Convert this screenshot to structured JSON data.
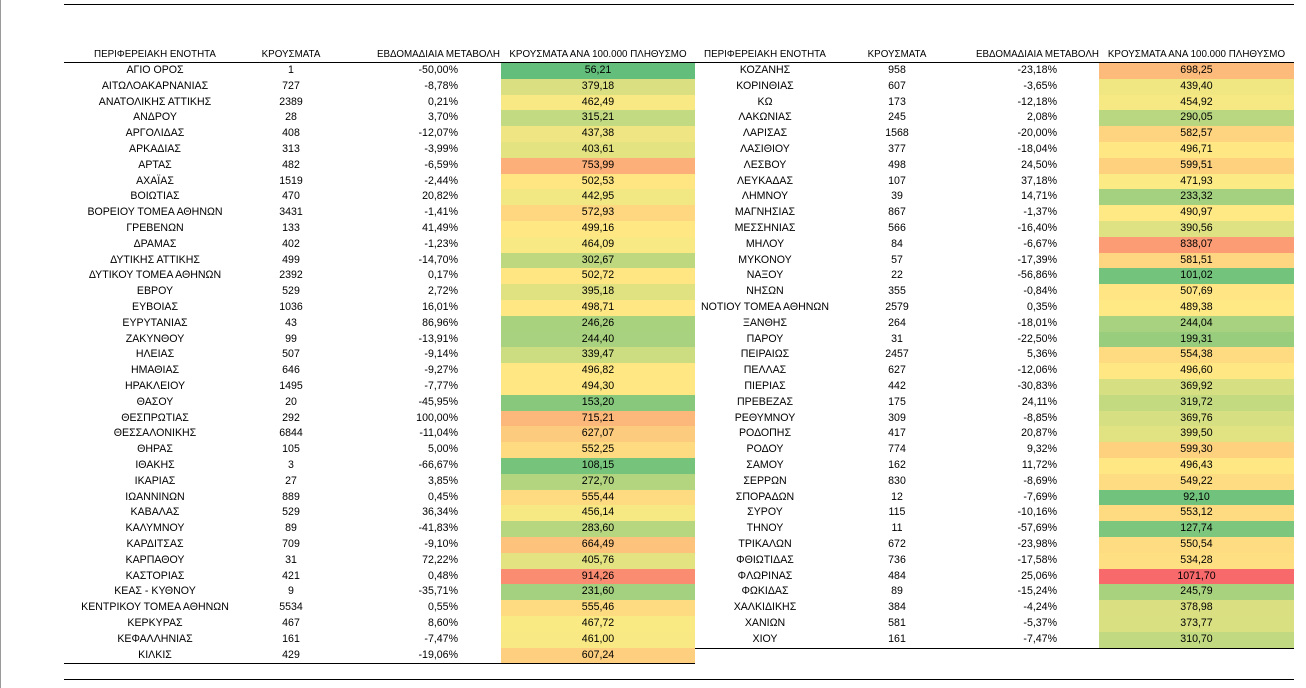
{
  "headers": {
    "region": "ΠΕΡΙΦΕΡΕΙΑΚΗ ΕΝΟΤΗΤΑ",
    "cases": "ΚΡΟΥΣΜΑΤΑ",
    "weekly_change": "ΕΒΔΟΜΑΔΙΑΙΑ ΜΕΤΑΒΟΛΗ",
    "per100k": "ΚΡΟΥΣΜΑΤΑ ΑΝΑ 100.000 ΠΛΗΘΥΣΜΟ"
  },
  "colors": {
    "scale_low": "#63be7b",
    "scale_mid": "#ffeb84",
    "scale_high": "#f8696b"
  },
  "color_scale": {
    "min": 56.21,
    "mid": 480,
    "max": 1071.7
  },
  "left_rows": [
    {
      "region": "ΑΓΙΟ ΟΡΟΣ",
      "cases": "1",
      "change": "-50,00%",
      "per100k": "56,21",
      "value": 56.21
    },
    {
      "region": "ΑΙΤΩΛΟΑΚΑΡΝΑΝΙΑΣ",
      "cases": "727",
      "change": "-8,78%",
      "per100k": "379,18",
      "value": 379.18
    },
    {
      "region": "ΑΝΑΤΟΛΙΚΗΣ ΑΤΤΙΚΗΣ",
      "cases": "2389",
      "change": "0,21%",
      "per100k": "462,49",
      "value": 462.49
    },
    {
      "region": "ΑΝΔΡΟΥ",
      "cases": "28",
      "change": "3,70%",
      "per100k": "315,21",
      "value": 315.21
    },
    {
      "region": "ΑΡΓΟΛΙΔΑΣ",
      "cases": "408",
      "change": "-12,07%",
      "per100k": "437,38",
      "value": 437.38
    },
    {
      "region": "ΑΡΚΑΔΙΑΣ",
      "cases": "313",
      "change": "-3,99%",
      "per100k": "403,61",
      "value": 403.61
    },
    {
      "region": "ΑΡΤΑΣ",
      "cases": "482",
      "change": "-6,59%",
      "per100k": "753,99",
      "value": 753.99
    },
    {
      "region": "ΑΧΑΪΑΣ",
      "cases": "1519",
      "change": "-2,44%",
      "per100k": "502,53",
      "value": 502.53
    },
    {
      "region": "ΒΟΙΩΤΙΑΣ",
      "cases": "470",
      "change": "20,82%",
      "per100k": "442,95",
      "value": 442.95
    },
    {
      "region": "ΒΟΡΕΙΟΥ ΤΟΜΕΑ ΑΘΗΝΩΝ",
      "cases": "3431",
      "change": "-1,41%",
      "per100k": "572,93",
      "value": 572.93
    },
    {
      "region": "ΓΡΕΒΕΝΩΝ",
      "cases": "133",
      "change": "41,49%",
      "per100k": "499,16",
      "value": 499.16
    },
    {
      "region": "ΔΡΑΜΑΣ",
      "cases": "402",
      "change": "-1,23%",
      "per100k": "464,09",
      "value": 464.09
    },
    {
      "region": "ΔΥΤΙΚΗΣ ΑΤΤΙΚΗΣ",
      "cases": "499",
      "change": "-14,70%",
      "per100k": "302,67",
      "value": 302.67
    },
    {
      "region": "ΔΥΤΙΚΟΥ ΤΟΜΕΑ ΑΘΗΝΩΝ",
      "cases": "2392",
      "change": "0,17%",
      "per100k": "502,72",
      "value": 502.72
    },
    {
      "region": "ΕΒΡΟΥ",
      "cases": "529",
      "change": "2,72%",
      "per100k": "395,18",
      "value": 395.18
    },
    {
      "region": "ΕΥΒΟΙΑΣ",
      "cases": "1036",
      "change": "16,01%",
      "per100k": "498,71",
      "value": 498.71
    },
    {
      "region": "ΕΥΡΥΤΑΝΙΑΣ",
      "cases": "43",
      "change": "86,96%",
      "per100k": "246,26",
      "value": 246.26
    },
    {
      "region": "ΖΑΚΥΝΘΟΥ",
      "cases": "99",
      "change": "-13,91%",
      "per100k": "244,40",
      "value": 244.4
    },
    {
      "region": "ΗΛΕΙΑΣ",
      "cases": "507",
      "change": "-9,14%",
      "per100k": "339,47",
      "value": 339.47
    },
    {
      "region": "ΗΜΑΘΙΑΣ",
      "cases": "646",
      "change": "-9,27%",
      "per100k": "496,82",
      "value": 496.82
    },
    {
      "region": "ΗΡΑΚΛΕΙΟΥ",
      "cases": "1495",
      "change": "-7,77%",
      "per100k": "494,30",
      "value": 494.3
    },
    {
      "region": "ΘΑΣΟΥ",
      "cases": "20",
      "change": "-45,95%",
      "per100k": "153,20",
      "value": 153.2
    },
    {
      "region": "ΘΕΣΠΡΩΤΙΑΣ",
      "cases": "292",
      "change": "100,00%",
      "per100k": "715,21",
      "value": 715.21
    },
    {
      "region": "ΘΕΣΣΑΛΟΝΙΚΗΣ",
      "cases": "6844",
      "change": "-11,04%",
      "per100k": "627,07",
      "value": 627.07
    },
    {
      "region": "ΘΗΡΑΣ",
      "cases": "105",
      "change": "5,00%",
      "per100k": "552,25",
      "value": 552.25
    },
    {
      "region": "ΙΘΑΚΗΣ",
      "cases": "3",
      "change": "-66,67%",
      "per100k": "108,15",
      "value": 108.15
    },
    {
      "region": "ΙΚΑΡΙΑΣ",
      "cases": "27",
      "change": "3,85%",
      "per100k": "272,70",
      "value": 272.7
    },
    {
      "region": "ΙΩΑΝΝΙΝΩΝ",
      "cases": "889",
      "change": "0,45%",
      "per100k": "555,44",
      "value": 555.44
    },
    {
      "region": "ΚΑΒΑΛΑΣ",
      "cases": "529",
      "change": "36,34%",
      "per100k": "456,14",
      "value": 456.14
    },
    {
      "region": "ΚΑΛΥΜΝΟΥ",
      "cases": "89",
      "change": "-41,83%",
      "per100k": "283,60",
      "value": 283.6
    },
    {
      "region": "ΚΑΡΔΙΤΣΑΣ",
      "cases": "709",
      "change": "-9,10%",
      "per100k": "664,49",
      "value": 664.49
    },
    {
      "region": "ΚΑΡΠΑΘΟΥ",
      "cases": "31",
      "change": "72,22%",
      "per100k": "405,76",
      "value": 405.76
    },
    {
      "region": "ΚΑΣΤΟΡΙΑΣ",
      "cases": "421",
      "change": "0,48%",
      "per100k": "914,26",
      "value": 914.26
    },
    {
      "region": "ΚΕΑΣ - ΚΥΘΝΟΥ",
      "cases": "9",
      "change": "-35,71%",
      "per100k": "231,60",
      "value": 231.6
    },
    {
      "region": "ΚΕΝΤΡΙΚΟΥ ΤΟΜΕΑ ΑΘΗΝΩΝ",
      "cases": "5534",
      "change": "0,55%",
      "per100k": "555,46",
      "value": 555.46
    },
    {
      "region": "ΚΕΡΚΥΡΑΣ",
      "cases": "467",
      "change": "8,60%",
      "per100k": "467,72",
      "value": 467.72
    },
    {
      "region": "ΚΕΦΑΛΛΗΝΙΑΣ",
      "cases": "161",
      "change": "-7,47%",
      "per100k": "461,00",
      "value": 461.0
    },
    {
      "region": "ΚΙΛΚΙΣ",
      "cases": "429",
      "change": "-19,06%",
      "per100k": "607,24",
      "value": 607.24
    }
  ],
  "right_rows": [
    {
      "region": "ΚΟΖΑΝΗΣ",
      "cases": "958",
      "change": "-23,18%",
      "per100k": "698,25",
      "value": 698.25
    },
    {
      "region": "ΚΟΡΙΝΘΙΑΣ",
      "cases": "607",
      "change": "-3,65%",
      "per100k": "439,40",
      "value": 439.4
    },
    {
      "region": "ΚΩ",
      "cases": "173",
      "change": "-12,18%",
      "per100k": "454,92",
      "value": 454.92
    },
    {
      "region": "ΛΑΚΩΝΙΑΣ",
      "cases": "245",
      "change": "2,08%",
      "per100k": "290,05",
      "value": 290.05
    },
    {
      "region": "ΛΑΡΙΣΑΣ",
      "cases": "1568",
      "change": "-20,00%",
      "per100k": "582,57",
      "value": 582.57
    },
    {
      "region": "ΛΑΣΙΘΙΟΥ",
      "cases": "377",
      "change": "-18,04%",
      "per100k": "496,71",
      "value": 496.71
    },
    {
      "region": "ΛΕΣΒΟΥ",
      "cases": "498",
      "change": "24,50%",
      "per100k": "599,51",
      "value": 599.51
    },
    {
      "region": "ΛΕΥΚΑΔΑΣ",
      "cases": "107",
      "change": "37,18%",
      "per100k": "471,93",
      "value": 471.93
    },
    {
      "region": "ΛΗΜΝΟΥ",
      "cases": "39",
      "change": "14,71%",
      "per100k": "233,32",
      "value": 233.32
    },
    {
      "region": "ΜΑΓΝΗΣΙΑΣ",
      "cases": "867",
      "change": "-1,37%",
      "per100k": "490,97",
      "value": 490.97
    },
    {
      "region": "ΜΕΣΣΗΝΙΑΣ",
      "cases": "566",
      "change": "-16,40%",
      "per100k": "390,56",
      "value": 390.56
    },
    {
      "region": "ΜΗΛΟΥ",
      "cases": "84",
      "change": "-6,67%",
      "per100k": "838,07",
      "value": 838.07
    },
    {
      "region": "ΜΥΚΟΝΟΥ",
      "cases": "57",
      "change": "-17,39%",
      "per100k": "581,51",
      "value": 581.51
    },
    {
      "region": "ΝΑΞΟΥ",
      "cases": "22",
      "change": "-56,86%",
      "per100k": "101,02",
      "value": 101.02
    },
    {
      "region": "ΝΗΣΩΝ",
      "cases": "355",
      "change": "-0,84%",
      "per100k": "507,69",
      "value": 507.69
    },
    {
      "region": "ΝΟΤΙΟΥ ΤΟΜΕΑ ΑΘΗΝΩΝ",
      "cases": "2579",
      "change": "0,35%",
      "per100k": "489,38",
      "value": 489.38
    },
    {
      "region": "ΞΑΝΘΗΣ",
      "cases": "264",
      "change": "-18,01%",
      "per100k": "244,04",
      "value": 244.04
    },
    {
      "region": "ΠΑΡΟΥ",
      "cases": "31",
      "change": "-22,50%",
      "per100k": "199,31",
      "value": 199.31
    },
    {
      "region": "ΠΕΙΡΑΙΩΣ",
      "cases": "2457",
      "change": "5,36%",
      "per100k": "554,38",
      "value": 554.38
    },
    {
      "region": "ΠΕΛΛΑΣ",
      "cases": "627",
      "change": "-12,06%",
      "per100k": "496,60",
      "value": 496.6
    },
    {
      "region": "ΠΙΕΡΙΑΣ",
      "cases": "442",
      "change": "-30,83%",
      "per100k": "369,92",
      "value": 369.92
    },
    {
      "region": "ΠΡΕΒΕΖΑΣ",
      "cases": "175",
      "change": "24,11%",
      "per100k": "319,72",
      "value": 319.72
    },
    {
      "region": "ΡΕΘΥΜΝΟΥ",
      "cases": "309",
      "change": "-8,85%",
      "per100k": "369,76",
      "value": 369.76
    },
    {
      "region": "ΡΟΔΟΠΗΣ",
      "cases": "417",
      "change": "20,87%",
      "per100k": "399,50",
      "value": 399.5
    },
    {
      "region": "ΡΟΔΟΥ",
      "cases": "774",
      "change": "9,32%",
      "per100k": "599,30",
      "value": 599.3
    },
    {
      "region": "ΣΑΜΟΥ",
      "cases": "162",
      "change": "11,72%",
      "per100k": "496,43",
      "value": 496.43
    },
    {
      "region": "ΣΕΡΡΩΝ",
      "cases": "830",
      "change": "-8,69%",
      "per100k": "549,22",
      "value": 549.22
    },
    {
      "region": "ΣΠΟΡΑΔΩΝ",
      "cases": "12",
      "change": "-7,69%",
      "per100k": "92,10",
      "value": 92.1
    },
    {
      "region": "ΣΥΡΟΥ",
      "cases": "115",
      "change": "-10,16%",
      "per100k": "553,12",
      "value": 553.12
    },
    {
      "region": "ΤΗΝΟΥ",
      "cases": "11",
      "change": "-57,69%",
      "per100k": "127,74",
      "value": 127.74
    },
    {
      "region": "ΤΡΙΚΑΛΩΝ",
      "cases": "672",
      "change": "-23,98%",
      "per100k": "550,54",
      "value": 550.54
    },
    {
      "region": "ΦΘΙΩΤΙΔΑΣ",
      "cases": "736",
      "change": "-17,58%",
      "per100k": "534,28",
      "value": 534.28
    },
    {
      "region": "ΦΛΩΡΙΝΑΣ",
      "cases": "484",
      "change": "25,06%",
      "per100k": "1071,70",
      "value": 1071.7
    },
    {
      "region": "ΦΩΚΙΔΑΣ",
      "cases": "89",
      "change": "-15,24%",
      "per100k": "245,79",
      "value": 245.79
    },
    {
      "region": "ΧΑΛΚΙΔΙΚΗΣ",
      "cases": "384",
      "change": "-4,24%",
      "per100k": "378,98",
      "value": 378.98
    },
    {
      "region": "ΧΑΝΙΩΝ",
      "cases": "581",
      "change": "-5,37%",
      "per100k": "373,77",
      "value": 373.77
    },
    {
      "region": "ΧΙΟΥ",
      "cases": "161",
      "change": "-7,47%",
      "per100k": "310,70",
      "value": 310.7
    }
  ]
}
